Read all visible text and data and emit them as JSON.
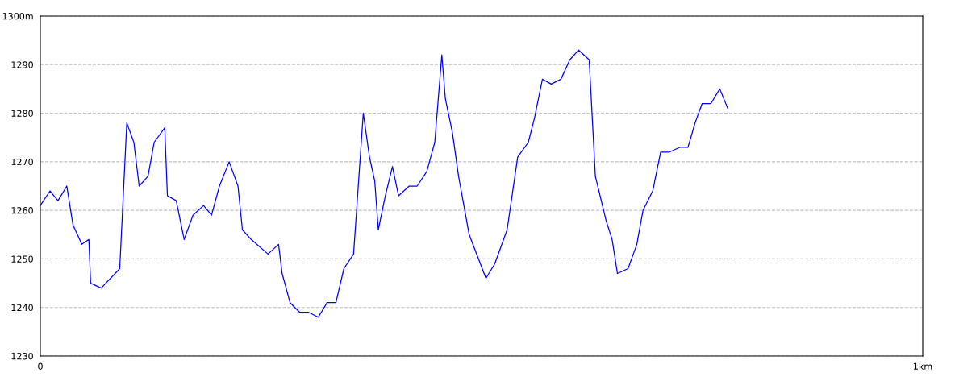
{
  "chart_data": {
    "type": "line",
    "x": [
      0,
      0.011,
      0.02,
      0.03,
      0.037,
      0.047,
      0.055,
      0.057,
      0.069,
      0.09,
      0.098,
      0.106,
      0.112,
      0.122,
      0.129,
      0.141,
      0.144,
      0.154,
      0.163,
      0.173,
      0.185,
      0.194,
      0.203,
      0.214,
      0.224,
      0.229,
      0.239,
      0.258,
      0.27,
      0.274,
      0.283,
      0.294,
      0.304,
      0.315,
      0.325,
      0.335,
      0.344,
      0.355,
      0.366,
      0.373,
      0.379,
      0.383,
      0.391,
      0.399,
      0.406,
      0.418,
      0.427,
      0.438,
      0.447,
      0.455,
      0.459,
      0.467,
      0.474,
      0.486,
      0.505,
      0.515,
      0.529,
      0.541,
      0.553,
      0.56,
      0.569,
      0.579,
      0.59,
      0.6,
      0.61,
      0.622,
      0.629,
      0.641,
      0.648,
      0.654,
      0.666,
      0.676,
      0.683,
      0.694,
      0.703,
      0.713,
      0.725,
      0.734,
      0.742,
      0.75,
      0.76,
      0.77,
      0.779
    ],
    "series": [
      {
        "color": "#0000ff",
        "values": [
          1261,
          1264,
          1262,
          1265,
          1257,
          1253,
          1254,
          1245,
          1244,
          1248,
          1278,
          1274,
          1265,
          1267,
          1274,
          1277,
          1263,
          1262,
          1254,
          1259,
          1261,
          1259,
          1265,
          1270,
          1265,
          1256,
          1254,
          1251,
          1253,
          1247,
          1241,
          1239,
          1239,
          1238,
          1241,
          1241,
          1248,
          1251,
          1280,
          1271,
          1266,
          1256,
          1263,
          1269,
          1263,
          1265,
          1265,
          1268,
          1274,
          1292,
          1283,
          1276,
          1267,
          1255,
          1246,
          1249,
          1256,
          1271,
          1274,
          1279,
          1287,
          1286,
          1287,
          1291,
          1293,
          1291,
          1267,
          1258,
          1254,
          1247,
          1248,
          1253,
          1260,
          1264,
          1272,
          1272,
          1273,
          1273,
          1278,
          1282,
          1282,
          1285,
          1281
        ]
      }
    ],
    "xlim": [
      0,
      1
    ],
    "xticks": [
      0,
      {
        "value": 1,
        "label": "1km"
      }
    ],
    "ylim": [
      1230,
      1300
    ],
    "yticks": [
      1230,
      1240,
      1250,
      1260,
      1270,
      1280,
      1290,
      {
        "value": 1300,
        "label": "1300m"
      }
    ],
    "grid": "y",
    "line_style": "solid",
    "marker": "none",
    "legend": false
  }
}
